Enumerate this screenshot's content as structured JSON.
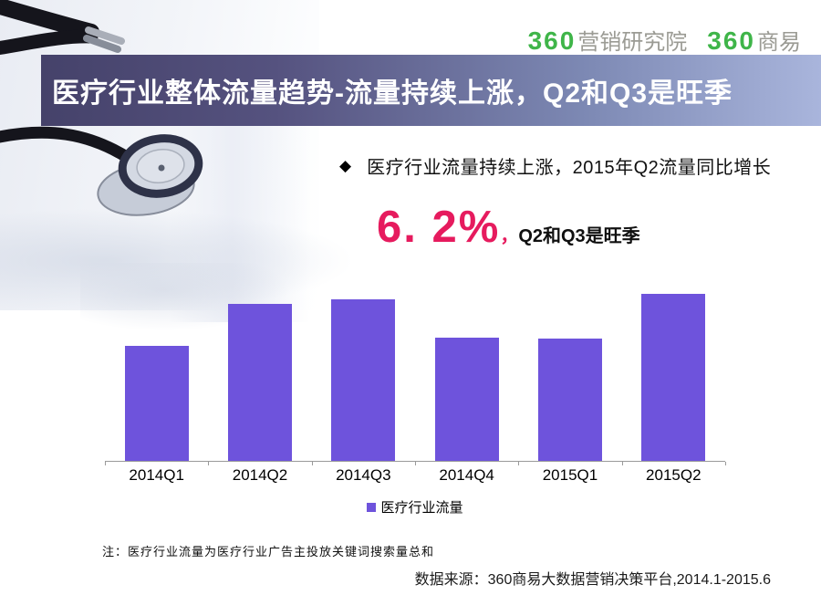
{
  "logo": {
    "brand1_num": "360",
    "brand1_name": "营销研究院",
    "brand2_num": "360",
    "brand2_name": "商易"
  },
  "title_bar": {
    "text": "医疗行业整体流量趋势-流量持续上涨，Q2和Q3是旺季"
  },
  "bullet": {
    "marker": "◆",
    "text": "医疗行业流量持续上涨，2015年Q2流量同比增长"
  },
  "stat": {
    "value": "6. 2%",
    "comma": "，",
    "suffix": "Q2和Q3是旺季"
  },
  "chart_data": {
    "type": "bar",
    "title": "",
    "xlabel": "",
    "ylabel": "",
    "categories": [
      "2014Q1",
      "2014Q2",
      "2014Q3",
      "2014Q4",
      "2015Q1",
      "2015Q2"
    ],
    "series": [
      {
        "name": "医疗行业流量",
        "values": [
          69,
          94,
          97,
          74,
          73,
          100
        ]
      }
    ],
    "values_are_relative_estimates": true,
    "ylim": [
      0,
      100
    ],
    "grid": false,
    "legend_position": "bottom",
    "bar_color": "#6e53dc",
    "axis_color": "#9a9a9a"
  },
  "footnote": {
    "text": "注：医疗行业流量为医疗行业广告主投放关键词搜索量总和"
  },
  "source": {
    "text": "数据来源：360商易大数据营销决策平台,2014.1-2015.6"
  },
  "colors": {
    "accent_red": "#e61b5e",
    "logo_green": "#3fb549",
    "logo_gray": "#9b9b94",
    "titlebar_dark": "#45426a",
    "titlebar_light": "#a9b5dc",
    "title_text": "#ffffff"
  }
}
